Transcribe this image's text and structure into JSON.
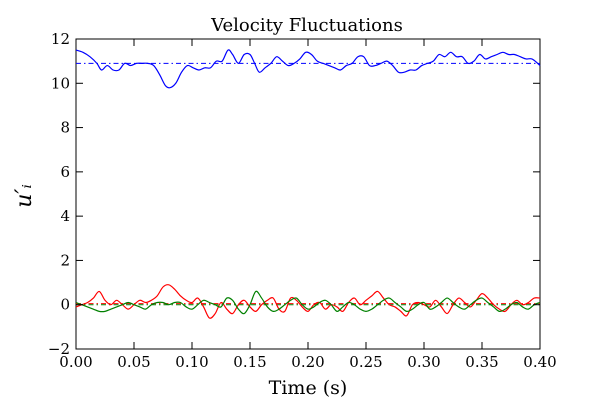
{
  "chart_data": {
    "type": "line",
    "title": "Velocity Fluctuations",
    "xlabel": "Time (s)",
    "ylabel": "u′ᵢ",
    "xlim": [
      0.0,
      0.4
    ],
    "ylim": [
      -2,
      12
    ],
    "grid": false,
    "xticks": [
      "0.00",
      "0.05",
      "0.10",
      "0.15",
      "0.20",
      "0.25",
      "0.30",
      "0.35",
      "0.40"
    ],
    "yticks": [
      "−2",
      "0",
      "2",
      "4",
      "6",
      "8",
      "10",
      "12"
    ],
    "series": [
      {
        "color": "#0000ff",
        "mean": 10.9,
        "x": [
          0.0,
          0.006,
          0.012,
          0.018,
          0.022,
          0.027,
          0.032,
          0.037,
          0.042,
          0.047,
          0.052,
          0.057,
          0.062,
          0.067,
          0.072,
          0.077,
          0.081,
          0.086,
          0.091,
          0.096,
          0.101,
          0.106,
          0.111,
          0.116,
          0.121,
          0.126,
          0.131,
          0.135,
          0.14,
          0.145,
          0.15,
          0.154,
          0.158,
          0.163,
          0.168,
          0.173,
          0.178,
          0.183,
          0.188,
          0.193,
          0.198,
          0.203,
          0.208,
          0.213,
          0.218,
          0.223,
          0.228,
          0.233,
          0.238,
          0.243,
          0.248,
          0.253,
          0.258,
          0.263,
          0.268,
          0.273,
          0.278,
          0.283,
          0.288,
          0.293,
          0.298,
          0.303,
          0.308,
          0.313,
          0.318,
          0.323,
          0.328,
          0.333,
          0.338,
          0.343,
          0.348,
          0.353,
          0.358,
          0.363,
          0.368,
          0.373,
          0.378,
          0.383,
          0.388,
          0.393,
          0.398,
          0.4
        ],
        "y": [
          11.5,
          11.4,
          11.2,
          10.9,
          10.6,
          10.8,
          10.6,
          10.6,
          10.9,
          10.8,
          10.9,
          10.9,
          10.9,
          10.8,
          10.4,
          9.9,
          9.8,
          10.0,
          10.5,
          10.8,
          10.7,
          10.6,
          10.7,
          10.7,
          11.0,
          11.0,
          11.5,
          11.3,
          10.9,
          11.3,
          11.3,
          10.9,
          10.5,
          10.7,
          10.9,
          11.2,
          11.0,
          10.8,
          10.9,
          11.1,
          11.4,
          11.3,
          11.0,
          10.9,
          10.8,
          10.7,
          10.6,
          10.8,
          10.9,
          11.2,
          11.2,
          10.8,
          10.8,
          10.9,
          11.0,
          10.8,
          10.5,
          10.5,
          10.6,
          10.6,
          10.8,
          10.9,
          11.0,
          11.3,
          11.2,
          11.4,
          11.2,
          11.2,
          10.9,
          11.0,
          11.3,
          11.1,
          11.2,
          11.3,
          11.4,
          11.3,
          11.3,
          11.2,
          11.1,
          11.1,
          10.9,
          10.8
        ]
      },
      {
        "color": "#ff0000",
        "mean": 0.05,
        "x": [
          0.0,
          0.005,
          0.01,
          0.015,
          0.02,
          0.025,
          0.03,
          0.035,
          0.04,
          0.045,
          0.05,
          0.055,
          0.06,
          0.065,
          0.07,
          0.075,
          0.08,
          0.085,
          0.09,
          0.095,
          0.1,
          0.105,
          0.11,
          0.115,
          0.12,
          0.125,
          0.13,
          0.135,
          0.14,
          0.145,
          0.15,
          0.155,
          0.16,
          0.165,
          0.17,
          0.175,
          0.18,
          0.185,
          0.19,
          0.195,
          0.2,
          0.205,
          0.21,
          0.215,
          0.22,
          0.225,
          0.23,
          0.235,
          0.24,
          0.245,
          0.25,
          0.255,
          0.26,
          0.265,
          0.27,
          0.275,
          0.28,
          0.285,
          0.29,
          0.295,
          0.3,
          0.305,
          0.31,
          0.315,
          0.32,
          0.325,
          0.33,
          0.335,
          0.34,
          0.345,
          0.35,
          0.355,
          0.36,
          0.365,
          0.37,
          0.375,
          0.38,
          0.385,
          0.39,
          0.395,
          0.4
        ],
        "y": [
          -0.1,
          0.0,
          0.1,
          0.3,
          0.6,
          0.2,
          0.0,
          0.2,
          0.0,
          -0.2,
          0.0,
          0.2,
          0.1,
          0.2,
          0.4,
          0.8,
          0.9,
          0.7,
          0.4,
          0.2,
          0.1,
          0.3,
          -0.1,
          -0.6,
          -0.4,
          0.1,
          -0.2,
          -0.4,
          0.0,
          0.2,
          -0.1,
          -0.3,
          0.0,
          0.2,
          0.3,
          -0.2,
          -0.3,
          0.3,
          0.2,
          -0.1,
          -0.3,
          0.0,
          0.1,
          -0.2,
          0.0,
          -0.1,
          -0.3,
          0.1,
          0.3,
          0.0,
          0.2,
          0.4,
          0.6,
          0.3,
          0.0,
          -0.1,
          -0.3,
          -0.5,
          0.0,
          0.1,
          0.0,
          -0.1,
          0.2,
          -0.1,
          -0.4,
          0.0,
          0.3,
          0.1,
          -0.1,
          0.2,
          0.5,
          0.3,
          0.0,
          -0.2,
          -0.3,
          0.0,
          0.2,
          0.0,
          0.1,
          0.3,
          0.3
        ]
      },
      {
        "color": "#008000",
        "mean": 0.0,
        "x": [
          0.0,
          0.005,
          0.01,
          0.015,
          0.02,
          0.025,
          0.03,
          0.035,
          0.04,
          0.045,
          0.05,
          0.055,
          0.06,
          0.065,
          0.07,
          0.075,
          0.08,
          0.085,
          0.09,
          0.095,
          0.1,
          0.105,
          0.11,
          0.115,
          0.12,
          0.125,
          0.13,
          0.135,
          0.14,
          0.145,
          0.15,
          0.155,
          0.16,
          0.165,
          0.17,
          0.175,
          0.18,
          0.185,
          0.19,
          0.195,
          0.2,
          0.205,
          0.21,
          0.215,
          0.22,
          0.225,
          0.23,
          0.235,
          0.24,
          0.245,
          0.25,
          0.255,
          0.26,
          0.265,
          0.27,
          0.275,
          0.28,
          0.285,
          0.29,
          0.295,
          0.3,
          0.305,
          0.31,
          0.315,
          0.32,
          0.325,
          0.33,
          0.335,
          0.34,
          0.345,
          0.35,
          0.355,
          0.36,
          0.365,
          0.37,
          0.375,
          0.38,
          0.385,
          0.39,
          0.395,
          0.4
        ],
        "y": [
          0.1,
          0.0,
          -0.1,
          -0.2,
          -0.3,
          -0.3,
          -0.2,
          -0.1,
          0.0,
          0.1,
          0.0,
          -0.1,
          -0.2,
          0.0,
          0.1,
          0.1,
          0.0,
          0.1,
          0.1,
          -0.1,
          -0.2,
          0.0,
          0.2,
          0.1,
          0.0,
          -0.1,
          0.3,
          0.2,
          -0.2,
          -0.4,
          0.0,
          0.6,
          0.3,
          -0.1,
          -0.3,
          -0.2,
          0.0,
          0.2,
          0.3,
          0.0,
          -0.2,
          -0.1,
          0.1,
          0.2,
          0.0,
          -0.3,
          -0.1,
          0.1,
          0.0,
          -0.2,
          -0.3,
          -0.2,
          0.0,
          0.2,
          0.3,
          0.1,
          -0.1,
          -0.3,
          -0.2,
          0.0,
          0.1,
          -0.2,
          -0.1,
          0.1,
          0.3,
          0.1,
          -0.1,
          -0.2,
          0.0,
          0.2,
          0.3,
          0.1,
          -0.1,
          -0.3,
          -0.2,
          0.0,
          0.1,
          -0.1,
          -0.2,
          0.0,
          0.1
        ]
      }
    ]
  }
}
